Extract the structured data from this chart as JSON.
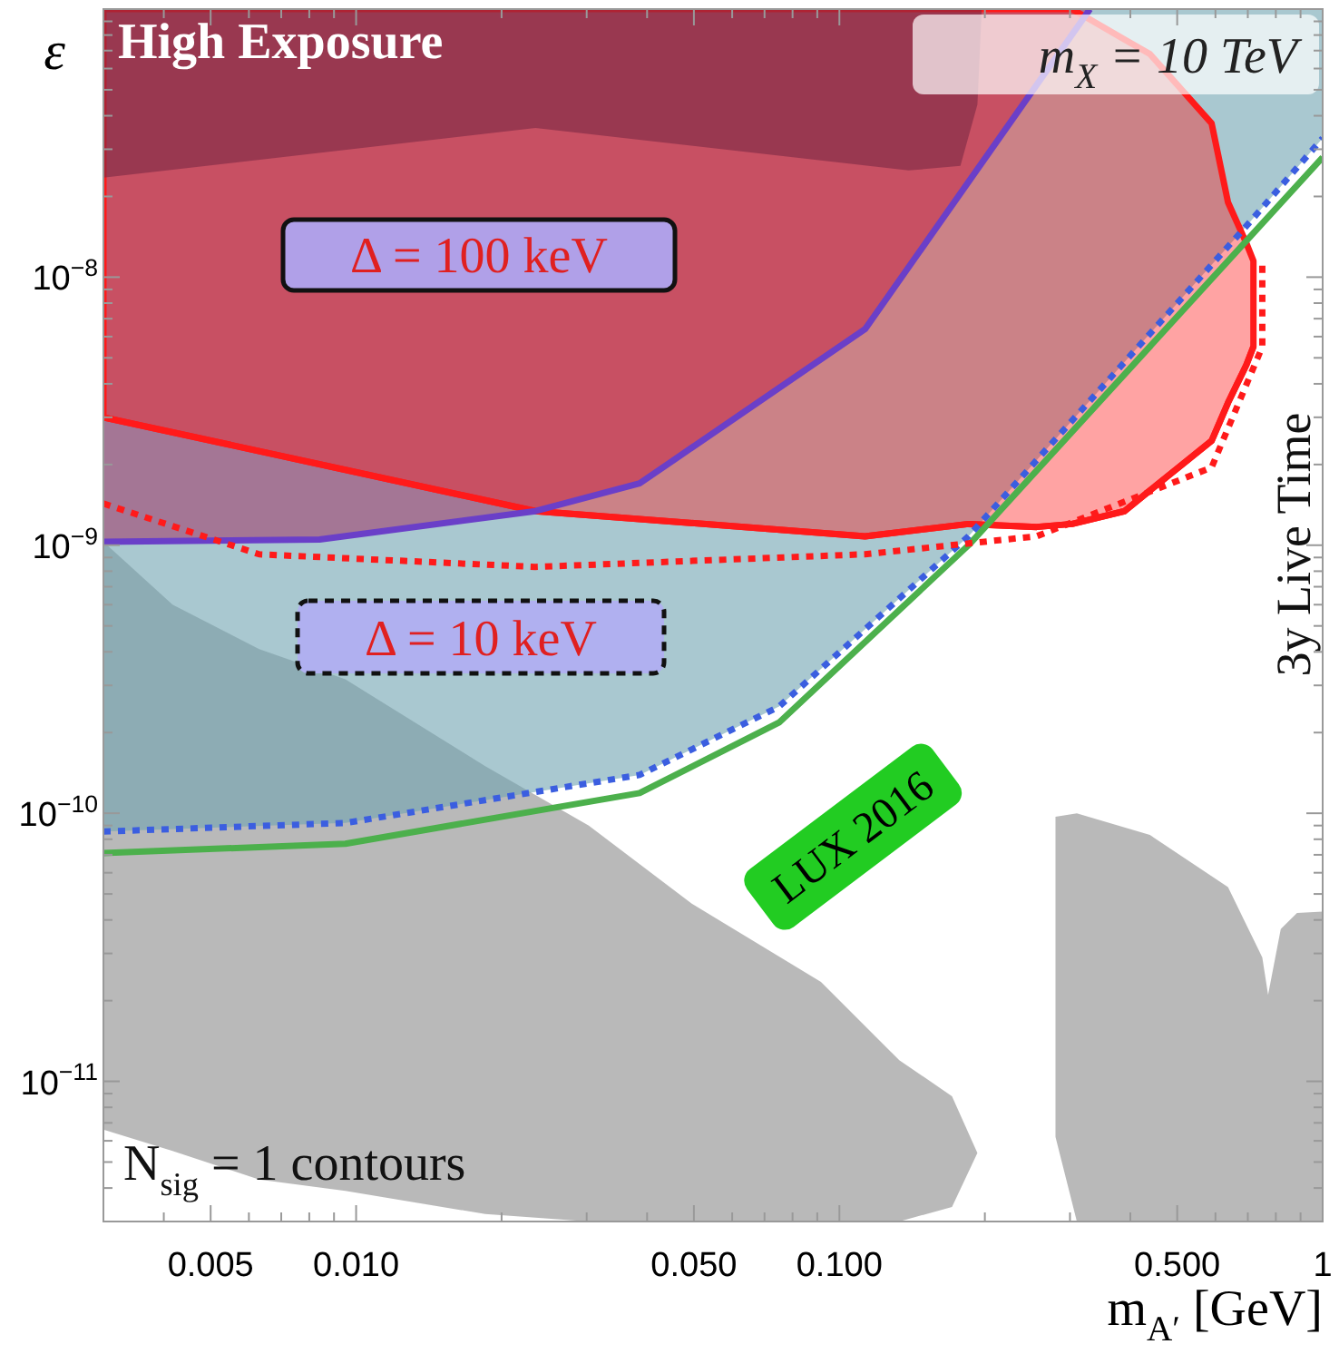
{
  "chart_data": {
    "type": "line",
    "log": "xy",
    "grid": false,
    "xlabel": "m$_{A′}$ [GeV]",
    "ylabel": "ε",
    "xlim": [
      0.003,
      1
    ],
    "ylim": [
      3e-12,
      1e-07
    ],
    "xticks": [
      0.005,
      {
        "value": 0.01,
        "label": "0.010"
      },
      {
        "value": 0.05,
        "label": "0.050"
      },
      {
        "value": 0.1,
        "label": "0.100"
      },
      {
        "value": 0.5,
        "label": "0.500"
      },
      1,
      {
        "value": 0.004,
        "label": null
      },
      {
        "value": 0.006,
        "label": null
      },
      {
        "value": 0.007,
        "label": null
      },
      {
        "value": 0.008,
        "label": null
      },
      {
        "value": 0.009,
        "label": null
      },
      {
        "value": 0.02,
        "label": null
      },
      {
        "value": 0.03,
        "label": null
      },
      {
        "value": 0.04,
        "label": null
      },
      {
        "value": 0.06,
        "label": null
      },
      {
        "value": 0.07,
        "label": null
      },
      {
        "value": 0.08,
        "label": null
      },
      {
        "value": 0.09,
        "label": null
      },
      {
        "value": 0.2,
        "label": null
      },
      {
        "value": 0.3,
        "label": null
      },
      {
        "value": 0.4,
        "label": null
      },
      {
        "value": 0.6,
        "label": null
      },
      {
        "value": 0.7,
        "label": null
      },
      {
        "value": 0.8,
        "label": null
      },
      {
        "value": 0.9,
        "label": null
      }
    ],
    "yticks": [
      {
        "value": 1e-08,
        "label": "10$^{−8}$"
      },
      {
        "value": 1e-09,
        "label": "10$^{−9}$"
      },
      {
        "value": 1e-10,
        "label": "10$^{−10}$"
      },
      {
        "value": 1e-11,
        "label": "10$^{−11}$"
      },
      {
        "value": 3e-12,
        "label": null
      },
      {
        "value": 4e-12,
        "label": null
      },
      {
        "value": 5e-12,
        "label": null
      },
      {
        "value": 6e-12,
        "label": null
      },
      {
        "value": 7e-12,
        "label": null
      },
      {
        "value": 8e-12,
        "label": null
      },
      {
        "value": 9e-12,
        "label": null
      },
      {
        "value": 2e-11,
        "label": null
      },
      {
        "value": 3e-11,
        "label": null
      },
      {
        "value": 4e-11,
        "label": null
      },
      {
        "value": 5e-11,
        "label": null
      },
      {
        "value": 6e-11,
        "label": null
      },
      {
        "value": 7e-11,
        "label": null
      },
      {
        "value": 8e-11,
        "label": null
      },
      {
        "value": 9e-11,
        "label": null
      },
      {
        "value": 2e-10,
        "label": null
      },
      {
        "value": 3e-10,
        "label": null
      },
      {
        "value": 4e-10,
        "label": null
      },
      {
        "value": 5e-10,
        "label": null
      },
      {
        "value": 6e-10,
        "label": null
      },
      {
        "value": 7e-10,
        "label": null
      },
      {
        "value": 8e-10,
        "label": null
      },
      {
        "value": 9e-10,
        "label": null
      },
      {
        "value": 2e-09,
        "label": null
      },
      {
        "value": 3e-09,
        "label": null
      },
      {
        "value": 4e-09,
        "label": null
      },
      {
        "value": 5e-09,
        "label": null
      },
      {
        "value": 6e-09,
        "label": null
      },
      {
        "value": 7e-09,
        "label": null
      },
      {
        "value": 8e-09,
        "label": null
      },
      {
        "value": 9e-09,
        "label": null
      },
      {
        "value": 2e-08,
        "label": null
      },
      {
        "value": 3e-08,
        "label": null
      },
      {
        "value": 4e-08,
        "label": null
      },
      {
        "value": 5e-08,
        "label": null
      },
      {
        "value": 6e-08,
        "label": null
      },
      {
        "value": 7e-08,
        "label": null
      },
      {
        "value": 8e-08,
        "label": null
      },
      {
        "value": 9e-08,
        "label": null
      }
    ],
    "series": [
      {
        "color": "#8a8a8a",
        "x": [
          0.003,
          0.00417,
          0.0063,
          0.0095,
          0.0185,
          0.0303,
          0.0495,
          0.0916,
          0.133,
          0.171,
          0.193
        ],
        "values": [
          null,
          null,
          null,
          null,
          null,
          null,
          null,
          null,
          null,
          null,
          null
        ],
        "upper": [
          1.03e-09,
          6e-10,
          4.1e-10,
          3.16e-10,
          1.5e-10,
          9e-11,
          4.6e-11,
          2.35e-11,
          1.2e-11,
          8.8e-12,
          5.4e-12
        ],
        "lower": [
          6.6e-12,
          5.5e-12,
          4.3e-12,
          3.9e-12,
          3.2e-12,
          3e-12,
          3e-12,
          3e-12,
          3e-12,
          3.4e-12,
          5.4e-12
        ]
      },
      {
        "color": "#8a8a8a",
        "x": [
          0.28,
          0.31,
          0.439,
          0.637,
          0.75,
          0.771,
          0.819,
          0.885,
          1.0
        ],
        "values": [
          null,
          null,
          null,
          null,
          null,
          null,
          null,
          null,
          null
        ],
        "upper": [
          9.7e-11,
          1e-10,
          8.3e-11,
          5.3e-11,
          2.9e-11,
          2.1e-11,
          3.7e-11,
          4.25e-11,
          4.3e-11
        ],
        "lower": [
          6.2e-12,
          3e-12,
          3e-12,
          3e-12,
          3e-12,
          3e-12,
          3e-12,
          3e-12,
          3e-12
        ]
      },
      {
        "color": "#70a3b1",
        "x": [
          0.003,
          0.0095,
          0.0386,
          0.075,
          0.185,
          0.695,
          1.0
        ],
        "values": [
          null,
          null,
          null,
          null,
          null,
          null,
          null
        ],
        "lower": [
          8.55e-11,
          9.2e-11,
          1.39e-10,
          2.5e-10,
          1.08e-09,
          1.55e-08,
          3.3e-08
        ],
        "upper": [
          1e-07,
          1e-07,
          1e-07,
          1e-07,
          1e-07,
          1e-07,
          1e-07
        ]
      },
      {
        "color": "#a2406e",
        "x": [
          0.003,
          0.0084,
          0.0235,
          0.0386,
          0.113,
          0.33
        ],
        "values": [
          null,
          null,
          null,
          null,
          null,
          null
        ],
        "lower": [
          1.03e-09,
          1.05e-09,
          1.34e-09,
          1.7e-09,
          6.4e-09,
          1e-07
        ],
        "upper": [
          1e-07,
          1e-07,
          1e-07,
          1e-07,
          1e-07,
          1e-07
        ]
      },
      {
        "color": "#ff1a1a",
        "line_style": "solid",
        "x": [
          0.003,
          0.0235,
          0.113,
          0.185,
          0.256,
          0.303,
          0.389,
          0.439,
          0.589,
          0.637,
          0.695,
          0.719
        ],
        "values": [
          3e-09,
          1.34e-09,
          1.08e-09,
          1.2e-09,
          1.17e-09,
          1.2e-09,
          1.34e-09,
          1.6e-09,
          2.45e-09,
          3.4e-09,
          4.7e-09,
          5.5e-09
        ],
        "lower": [
          3e-09,
          1.34e-09,
          1.08e-09,
          1.2e-09,
          1.17e-09,
          1.2e-09,
          1.34e-09,
          1.6e-09,
          2.45e-09,
          3.4e-09,
          4.7e-09,
          5.5e-09
        ],
        "upper": [
          1e-07,
          1e-07,
          1e-07,
          1e-07,
          1e-07,
          1e-07,
          7.7e-08,
          6.8e-08,
          3.75e-08,
          1.9e-08,
          1.34e-08,
          1.15e-08
        ]
      },
      {
        "color": "#7a2845",
        "x": [
          0.003,
          0.0235,
          0.139,
          0.178,
          0.193,
          0.197
        ],
        "values": [
          null,
          null,
          null,
          null,
          null,
          null
        ],
        "lower": [
          2.35e-08,
          3.6e-08,
          2.5e-08,
          2.6e-08,
          4.4e-08,
          1e-07
        ],
        "upper": [
          1e-07,
          1e-07,
          1e-07,
          1e-07,
          1e-07,
          1e-07
        ]
      },
      {
        "name": "LUX 2016",
        "color": "#4cb04c",
        "line_style": "solid",
        "x": [
          0.003,
          0.0095,
          0.0386,
          0.075,
          0.185,
          1.0
        ],
        "values": [
          7.1e-11,
          7.7e-11,
          1.19e-10,
          2.18e-10,
          1e-09,
          2.8e-08
        ]
      },
      {
        "color": "#3b5ee0",
        "line_style": "dotted",
        "x": [
          0.003,
          0.0095,
          0.0386,
          0.075,
          0.185,
          0.695,
          1.0
        ],
        "values": [
          8.55e-11,
          9.2e-11,
          1.39e-10,
          2.5e-10,
          1.08e-09,
          1.55e-08,
          3.3e-08
        ]
      },
      {
        "color": "#6a3fc8",
        "line_style": "solid",
        "x": [
          0.003,
          0.0084,
          0.0235,
          0.0386,
          0.113,
          0.33
        ],
        "values": [
          1.03e-09,
          1.05e-09,
          1.34e-09,
          1.7e-09,
          6.4e-09,
          1e-07
        ]
      },
      {
        "color": "#ff1a1a",
        "line_style": "dotted",
        "x": [
          0.003,
          0.0063,
          0.0235,
          0.113,
          0.256,
          0.589,
          0.75,
          0.75
        ],
        "values": [
          1.43e-09,
          9.25e-10,
          8.3e-10,
          9.25e-10,
          1.08e-09,
          1.95e-09,
          5.5e-09,
          1.15e-08
        ]
      }
    ],
    "annotations": [
      "High Exposure",
      "m$_{X}$ = 10 TeV",
      "Δ = 100 keV",
      "Δ = 10 keV",
      "3y Live Time",
      "N$_{sig}$ = 1 contours"
    ]
  }
}
